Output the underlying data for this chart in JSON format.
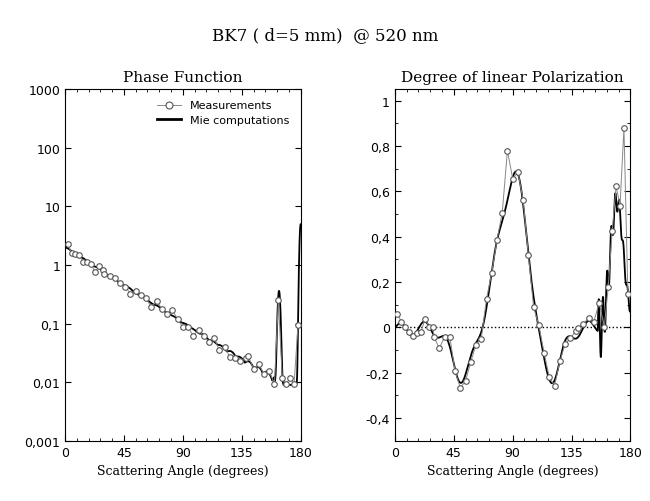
{
  "title": "BK7 ( d=5 mm)  @ 520 nm",
  "left_title": "Phase Function",
  "right_title": "Degree of linear Polarization",
  "xlabel": "Scattering Angle (degrees)",
  "bg_color": "#ffffff",
  "line_color": "#000000",
  "marker_facecolor": "#d8d8d8",
  "marker_edgecolor": "#666666",
  "legend_measurements": "Measurements",
  "legend_mie": "Mie computations",
  "phase_ytick_vals": [
    0.001,
    0.01,
    0.1,
    1,
    10,
    100,
    1000
  ],
  "phase_ytick_labels": [
    "0,001",
    "0,01",
    "0,1",
    "1",
    "10",
    "100",
    "1000"
  ],
  "pol_ytick_vals": [
    -0.4,
    -0.2,
    0.0,
    0.2,
    0.4,
    0.6,
    0.8,
    1.0
  ],
  "pol_ytick_labels": [
    "-0,4",
    "-0,2",
    "0",
    "0,2",
    "0,4",
    "0,6",
    "0,8",
    "1"
  ],
  "xticks": [
    0,
    45,
    90,
    135,
    180
  ]
}
